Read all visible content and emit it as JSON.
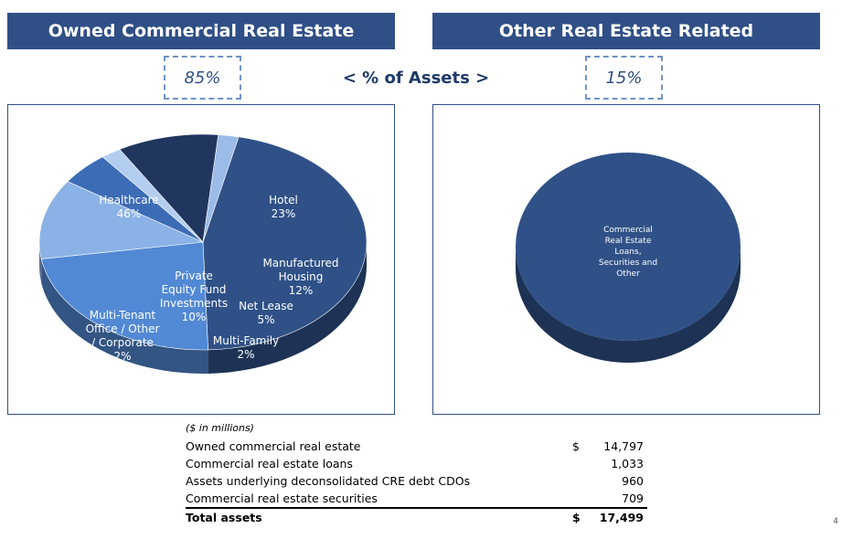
{
  "headers": {
    "left": "Owned Commercial Real Estate",
    "right": "Other Real Estate Related"
  },
  "pct": {
    "left": "85%",
    "middle": "< % of Assets >",
    "right": "15%"
  },
  "chart_data": [
    {
      "type": "pie",
      "title": "",
      "slices": [
        {
          "label": "Healthcare",
          "value": 46,
          "display": "46%",
          "color": "#2f5187"
        },
        {
          "label": "Hotel",
          "value": 23,
          "display": "23%",
          "color": "#5289d4"
        },
        {
          "label": "Manufactured Housing",
          "value": 12,
          "display": "12%",
          "color": "#8bb2e6"
        },
        {
          "label": "Net Lease",
          "value": 5,
          "display": "5%",
          "color": "#3d6cb6"
        },
        {
          "label": "Multi-Family",
          "value": 2,
          "display": "2%",
          "color": "#b3cdf0"
        },
        {
          "label": "Private Equity Fund Investments",
          "value": 10,
          "display": "10%",
          "color": "#21365e"
        },
        {
          "label": "Multi-Tenant Office / Other / Corporate",
          "value": 2,
          "display": "2%",
          "color": "#9bbbe8"
        }
      ]
    },
    {
      "type": "pie",
      "title": "",
      "slices": [
        {
          "label": "Commercial Real Estate Loans, Securities and Other",
          "value": 100,
          "display": "",
          "color": "#2f5187"
        }
      ]
    }
  ],
  "table": {
    "note": "($ in millions)",
    "rows": [
      {
        "label": "Owned commercial real estate",
        "currency": "$",
        "value": "14,797"
      },
      {
        "label": "Commercial real estate loans",
        "currency": "",
        "value": "1,033"
      },
      {
        "label": "Assets underlying deconsolidated CRE debt CDOs",
        "currency": "",
        "value": "960"
      },
      {
        "label": "Commercial real estate securities",
        "currency": "",
        "value": "709"
      }
    ],
    "total": {
      "label": "Total assets",
      "currency": "$",
      "value": "17,499"
    }
  },
  "page_number": "4"
}
